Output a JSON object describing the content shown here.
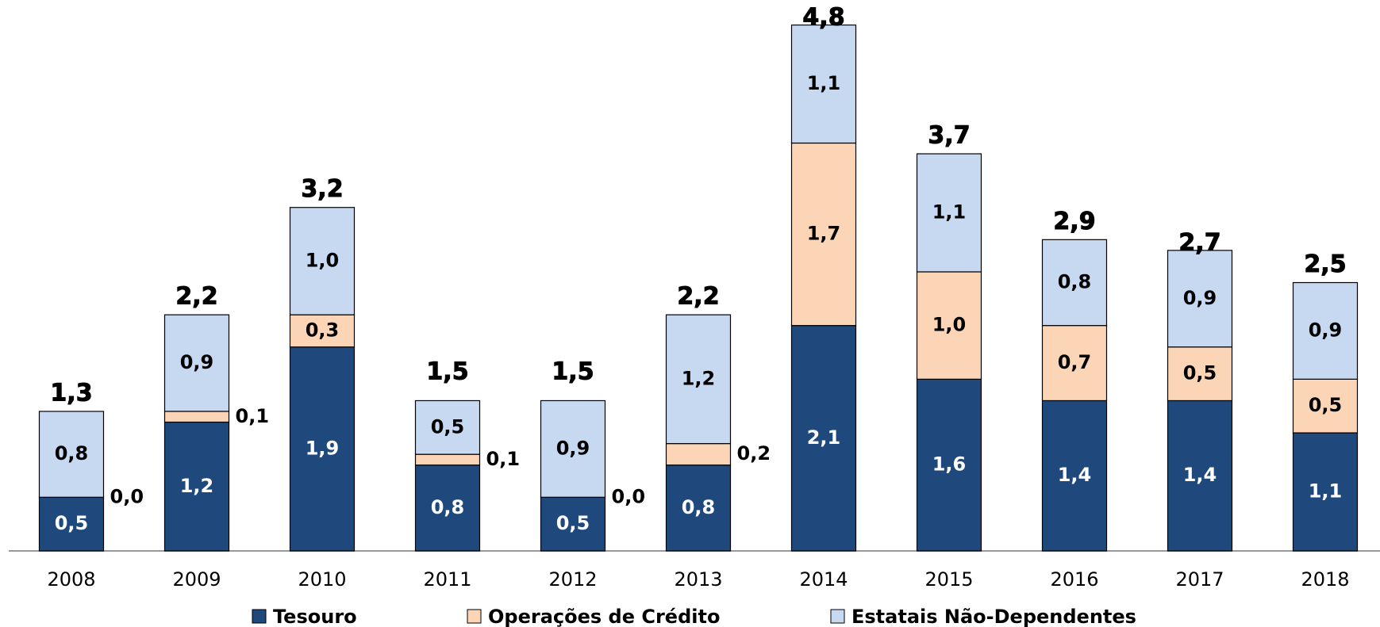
{
  "chart_data": {
    "type": "stacked-bar",
    "categories": [
      "2008",
      "2009",
      "2010",
      "2011",
      "2012",
      "2013",
      "2014",
      "2015",
      "2016",
      "2017",
      "2018"
    ],
    "series": [
      {
        "name": "Tesouro",
        "color": "#1f497d",
        "label_color": "#ffffff",
        "values": [
          0.5,
          1.2,
          1.9,
          0.8,
          0.5,
          0.8,
          2.1,
          1.6,
          1.4,
          1.4,
          1.1
        ],
        "value_labels": [
          "0,5",
          "1,2",
          "1,9",
          "0,8",
          "0,5",
          "0,8",
          "2,1",
          "1,6",
          "1,4",
          "1,4",
          "1,1"
        ]
      },
      {
        "name": "Operações de Crédito",
        "color": "#fbd5b5",
        "label_color": "#000000",
        "values": [
          0.0,
          0.1,
          0.3,
          0.1,
          0.0,
          0.2,
          1.7,
          1.0,
          0.7,
          0.5,
          0.5
        ],
        "value_labels": [
          "0,0",
          "0,1",
          "0,3",
          "0,1",
          "0,0",
          "0,2",
          "1,7",
          "1,0",
          "0,7",
          "0,5",
          "0,5"
        ]
      },
      {
        "name": "Estatais Não-Dependentes",
        "color": "#c6d9f1",
        "label_color": "#000000",
        "values": [
          0.8,
          0.9,
          1.0,
          0.5,
          0.9,
          1.2,
          1.1,
          1.1,
          0.8,
          0.9,
          0.9
        ],
        "value_labels": [
          "0,8",
          "0,9",
          "1,0",
          "0,5",
          "0,9",
          "1,2",
          "1,1",
          "1,1",
          "0,8",
          "0,9",
          "0,9"
        ]
      }
    ],
    "totals": [
      1.3,
      2.2,
      3.2,
      1.5,
      1.5,
      2.2,
      4.8,
      3.7,
      2.9,
      2.7,
      2.5
    ],
    "total_labels": [
      "1,3",
      "2,2",
      "3,2",
      "1,5",
      "1,5",
      "2,2",
      "4,8",
      "3,7",
      "2,9",
      "2,7",
      "2,5"
    ],
    "ylim": [
      0,
      5
    ]
  }
}
